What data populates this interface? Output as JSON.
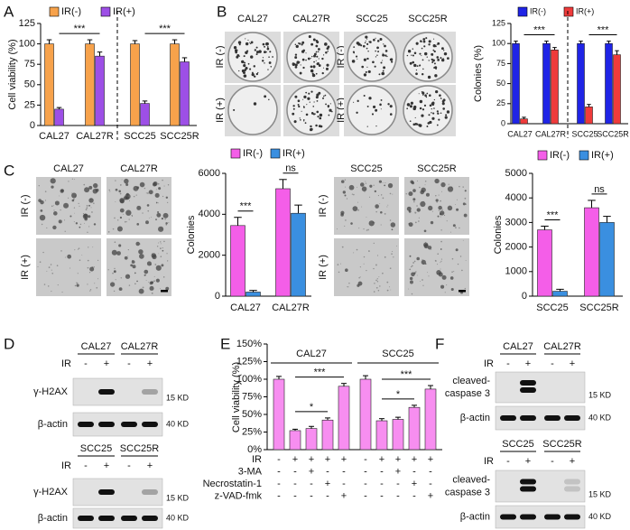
{
  "panel_labels": [
    "A",
    "B",
    "C",
    "D",
    "E",
    "F"
  ],
  "chart_data": [
    {
      "type": "bar",
      "ylabel": "Cell viability (%)",
      "categories": [
        "CAL27",
        "CAL27R",
        "SCC25",
        "SCC25R"
      ],
      "series": [
        {
          "name": "IR(-)",
          "color": "#f7a24b",
          "values": [
            100,
            100,
            100,
            100
          ],
          "errors": [
            5,
            5,
            4,
            5
          ]
        },
        {
          "name": "IR(+)",
          "color": "#9d4fe6",
          "values": [
            20,
            85,
            27,
            78
          ],
          "errors": [
            2,
            5,
            3,
            5
          ]
        }
      ],
      "ylim": [
        0,
        125
      ],
      "yticks": [
        0,
        25,
        50,
        75,
        100,
        125
      ],
      "annotations": [
        {
          "text": "***",
          "between": [
            [
              0,
              1
            ],
            [
              1,
              1
            ]
          ]
        },
        {
          "text": "***",
          "between": [
            [
              2,
              1
            ],
            [
              3,
              1
            ]
          ]
        }
      ]
    },
    {
      "type": "bar",
      "ylabel": "Colonies (%)",
      "categories": [
        "CAL27",
        "CAL27R",
        "SCC25",
        "SCC25R"
      ],
      "series": [
        {
          "name": "IR(-)",
          "color": "#1f24e6",
          "values": [
            100,
            100,
            100,
            100
          ],
          "errors": [
            3,
            3,
            3,
            3
          ]
        },
        {
          "name": "IR(+)",
          "color": "#ef3b3b",
          "values": [
            6,
            92,
            21,
            86
          ],
          "errors": [
            2,
            3,
            3,
            5
          ]
        }
      ],
      "ylim": [
        0,
        125
      ],
      "yticks": [
        0,
        25,
        50,
        75,
        100,
        125
      ],
      "annotations": [
        {
          "text": "***",
          "between": [
            [
              0,
              1
            ],
            [
              1,
              1
            ]
          ]
        },
        {
          "text": "***",
          "between": [
            [
              2,
              1
            ],
            [
              3,
              1
            ]
          ]
        }
      ]
    },
    {
      "type": "bar",
      "ylabel": "Colonies",
      "categories": [
        "CAL27",
        "CAL27R"
      ],
      "series": [
        {
          "name": "IR(-)",
          "color": "#f45ee8",
          "values": [
            3450,
            5250
          ],
          "errors": [
            400,
            450
          ]
        },
        {
          "name": "IR(+)",
          "color": "#3a8fe0",
          "values": [
            200,
            4050
          ],
          "errors": [
            80,
            400
          ]
        }
      ],
      "ylim": [
        0,
        6000
      ],
      "yticks": [
        0,
        2000,
        4000,
        6000
      ],
      "annotations": [
        {
          "text": "***",
          "between": [
            [
              0,
              0
            ],
            [
              0,
              1
            ]
          ]
        },
        {
          "text": "ns",
          "between": [
            [
              1,
              0
            ],
            [
              1,
              1
            ]
          ]
        }
      ]
    },
    {
      "type": "bar",
      "ylabel": "Colonies",
      "categories": [
        "SCC25",
        "SCC25R"
      ],
      "series": [
        {
          "name": "IR(-)",
          "color": "#f45ee8",
          "values": [
            2700,
            3600
          ],
          "errors": [
            150,
            300
          ]
        },
        {
          "name": "IR(+)",
          "color": "#3a8fe0",
          "values": [
            200,
            3000
          ],
          "errors": [
            80,
            250
          ]
        }
      ],
      "ylim": [
        0,
        5000
      ],
      "yticks": [
        0,
        1000,
        2000,
        3000,
        4000,
        5000
      ],
      "annotations": [
        {
          "text": "***",
          "between": [
            [
              0,
              0
            ],
            [
              0,
              1
            ]
          ]
        },
        {
          "text": "ns",
          "between": [
            [
              1,
              0
            ],
            [
              1,
              1
            ]
          ]
        }
      ]
    },
    {
      "type": "bar",
      "ylabel": "Cell viability (%)",
      "groups": [
        "CAL27",
        "SCC25"
      ],
      "color": "#f78ef0",
      "values": [
        100,
        27,
        30,
        42,
        90,
        100,
        41,
        43,
        60,
        86
      ],
      "errors": [
        4,
        2,
        3,
        3,
        4,
        5,
        3,
        3,
        3,
        5
      ],
      "ylim": [
        0,
        150
      ],
      "yticks": [
        {
          "value": 0,
          "label": "0%"
        },
        {
          "value": 25,
          "label": "25%"
        },
        {
          "value": 50,
          "label": "50%"
        },
        {
          "value": 75,
          "label": "75%"
        },
        {
          "value": 100,
          "label": "100%"
        },
        {
          "value": 125,
          "label": "125%"
        },
        {
          "value": 150,
          "label": "150%"
        }
      ],
      "treatments": [
        {
          "name": "IR",
          "signs": [
            "-",
            "+",
            "+",
            "+",
            "+",
            "-",
            "+",
            "+",
            "+",
            "+"
          ]
        },
        {
          "name": "3-MA",
          "signs": [
            "-",
            "-",
            "+",
            "-",
            "-",
            "-",
            "-",
            "+",
            "-",
            "-"
          ]
        },
        {
          "name": "Necrostatin-1",
          "signs": [
            "-",
            "-",
            "-",
            "+",
            "-",
            "-",
            "-",
            "-",
            "+",
            "-"
          ]
        },
        {
          "name": "z-VAD-fmk",
          "signs": [
            "-",
            "-",
            "-",
            "-",
            "+",
            "-",
            "-",
            "-",
            "-",
            "+"
          ]
        }
      ],
      "annotations": [
        {
          "text": "*",
          "between": [
            1,
            3
          ]
        },
        {
          "text": "***",
          "between": [
            1,
            4
          ]
        },
        {
          "text": "*",
          "between": [
            6,
            8
          ]
        },
        {
          "text": "***",
          "between": [
            6,
            9
          ]
        }
      ]
    }
  ],
  "colony_images": {
    "pairs": [
      [
        "CAL27",
        "CAL27R"
      ],
      [
        "SCC25",
        "SCC25R"
      ]
    ],
    "conditions": [
      "IR (-)",
      "IR (+)"
    ]
  },
  "soft_agar_images": {
    "pairs": [
      [
        "CAL27",
        "CAL27R"
      ],
      [
        "SCC25",
        "SCC25R"
      ]
    ],
    "conditions": [
      "IR (-)",
      "IR (+)"
    ]
  },
  "blot_D": [
    {
      "cell_lines": [
        "CAL27",
        "CAL27R"
      ],
      "treatment": "IR",
      "lanes": [
        "-",
        "+",
        "-",
        "+"
      ],
      "rows": [
        {
          "label": [
            "γ-H2AX"
          ],
          "size": "15 KD"
        },
        {
          "label": [
            "β-actin"
          ],
          "size": "40 KD"
        }
      ]
    },
    {
      "cell_lines": [
        "SCC25",
        "SCC25R"
      ],
      "treatment": "IR",
      "lanes": [
        "-",
        "+",
        "-",
        "+"
      ],
      "rows": [
        {
          "label": [
            "γ-H2AX"
          ],
          "size": "15 KD"
        },
        {
          "label": [
            "β-actin"
          ],
          "size": "40 KD"
        }
      ]
    }
  ],
  "blot_F": [
    {
      "cell_lines": [
        "CAL27",
        "CAL27R"
      ],
      "treatment": "IR",
      "lanes": [
        "-",
        "+",
        "-",
        "+"
      ],
      "rows": [
        {
          "label": [
            "cleaved-",
            "caspase 3"
          ],
          "size": "15 KD"
        },
        {
          "label": [
            "β-actin"
          ],
          "size": "40 KD"
        }
      ]
    },
    {
      "cell_lines": [
        "SCC25",
        "SCC25R"
      ],
      "treatment": "IR",
      "lanes": [
        "-",
        "+",
        "-",
        "+"
      ],
      "rows": [
        {
          "label": [
            "cleaved-",
            "caspase 3"
          ],
          "size": "15 KD"
        },
        {
          "label": [
            "β-actin"
          ],
          "size": "40 KD"
        }
      ]
    }
  ]
}
